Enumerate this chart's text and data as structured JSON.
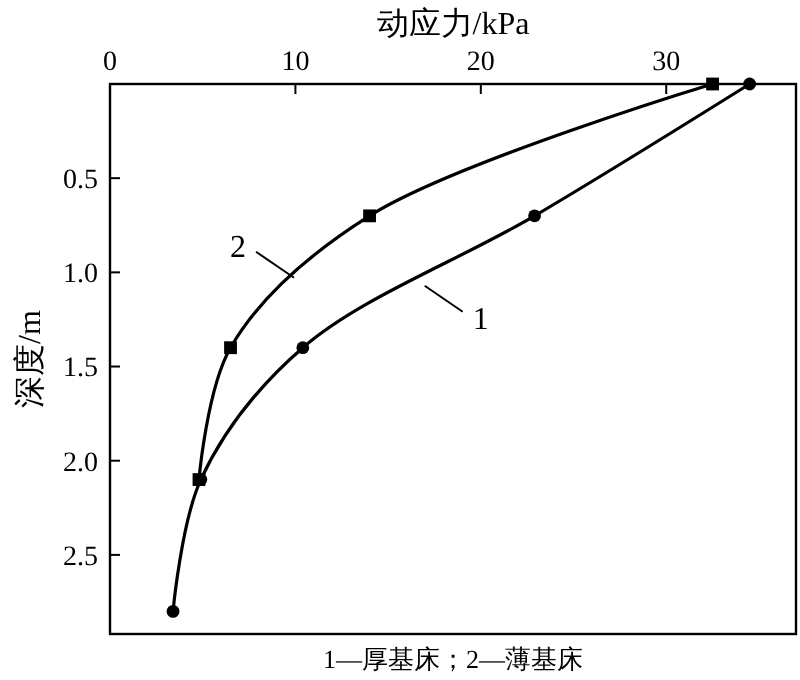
{
  "chart_data": {
    "type": "line",
    "xlabel": "动应力/kPa",
    "ylabel": "深度/m",
    "xlim": [
      0,
      37
    ],
    "xticks": [
      0,
      10,
      20,
      30
    ],
    "ylim": [
      2.92,
      0
    ],
    "yticks": [
      0.5,
      {
        "value": 1,
        "label": "1.0"
      },
      1.5,
      {
        "value": 2,
        "label": "2.0"
      },
      2.5
    ],
    "series": [
      {
        "name": "1",
        "color": "#000000",
        "marker": "circle",
        "x": [
          34.5,
          22.9,
          10.4,
          4.9,
          3.4
        ],
        "values": [
          0,
          0.7,
          1.4,
          2.1,
          2.8
        ]
      },
      {
        "name": "2",
        "color": "#000000",
        "marker": "square",
        "x": [
          32.5,
          14.0,
          6.5,
          4.8
        ],
        "values": [
          0,
          0.7,
          1.4,
          2.1
        ]
      }
    ],
    "annotations": [
      "1—厚基床；2—薄基床"
    ],
    "grid": false
  }
}
